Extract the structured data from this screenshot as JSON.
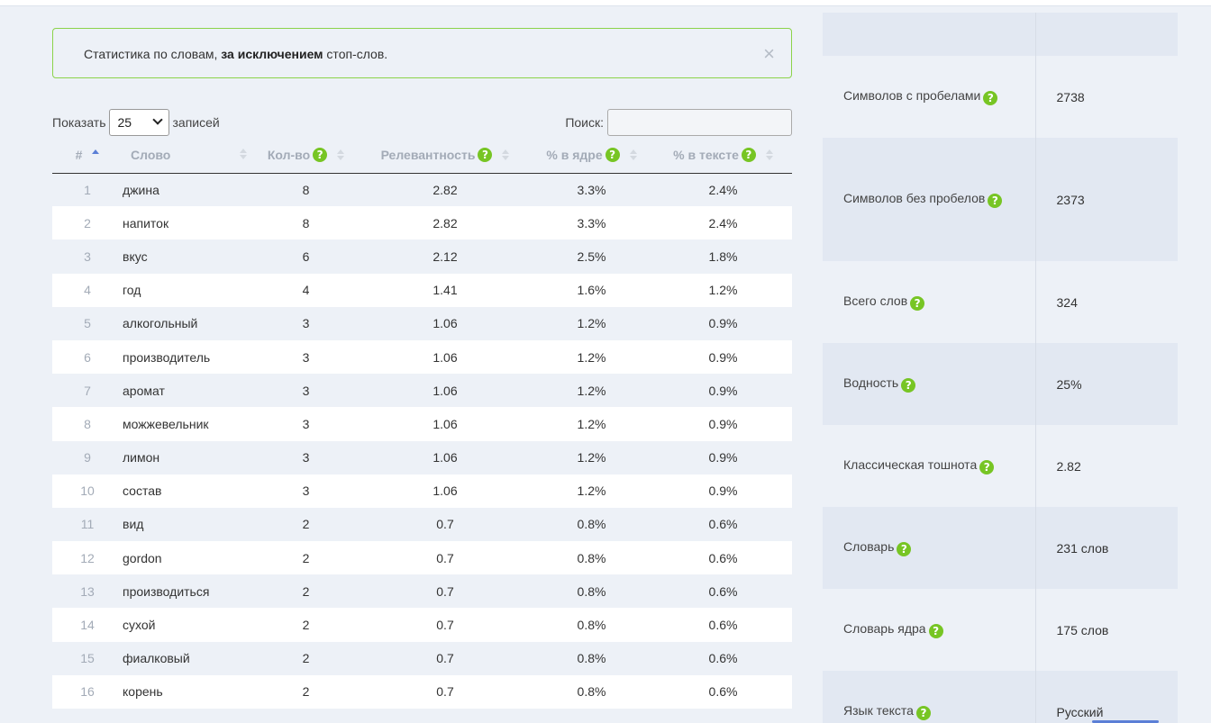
{
  "alert": {
    "text_before": "Статистика по словам, ",
    "text_bold": "за исключением",
    "text_after": " стоп-слов.",
    "close_glyph": "×"
  },
  "controls": {
    "show_label": "Показать",
    "page_size": "25",
    "entries_label": "записей",
    "search_label": "Поиск:",
    "search_value": ""
  },
  "table": {
    "columns": [
      "#",
      "Слово",
      "Кол-во",
      "Релевантность",
      "% в ядре",
      "% в тексте"
    ],
    "help_glyph": "?",
    "rows": [
      [
        "1",
        "джина",
        "8",
        "2.82",
        "3.3%",
        "2.4%"
      ],
      [
        "2",
        "напиток",
        "8",
        "2.82",
        "3.3%",
        "2.4%"
      ],
      [
        "3",
        "вкус",
        "6",
        "2.12",
        "2.5%",
        "1.8%"
      ],
      [
        "4",
        "год",
        "4",
        "1.41",
        "1.6%",
        "1.2%"
      ],
      [
        "5",
        "алкогольный",
        "3",
        "1.06",
        "1.2%",
        "0.9%"
      ],
      [
        "6",
        "производитель",
        "3",
        "1.06",
        "1.2%",
        "0.9%"
      ],
      [
        "7",
        "аромат",
        "3",
        "1.06",
        "1.2%",
        "0.9%"
      ],
      [
        "8",
        "можжевельник",
        "3",
        "1.06",
        "1.2%",
        "0.9%"
      ],
      [
        "9",
        "лимон",
        "3",
        "1.06",
        "1.2%",
        "0.9%"
      ],
      [
        "10",
        "состав",
        "3",
        "1.06",
        "1.2%",
        "0.9%"
      ],
      [
        "11",
        "вид",
        "2",
        "0.7",
        "0.8%",
        "0.6%"
      ],
      [
        "12",
        "gordon",
        "2",
        "0.7",
        "0.8%",
        "0.6%"
      ],
      [
        "13",
        "производиться",
        "2",
        "0.7",
        "0.8%",
        "0.6%"
      ],
      [
        "14",
        "сухой",
        "2",
        "0.7",
        "0.8%",
        "0.6%"
      ],
      [
        "15",
        "фиалковый",
        "2",
        "0.7",
        "0.8%",
        "0.6%"
      ],
      [
        "16",
        "корень",
        "2",
        "0.7",
        "0.8%",
        "0.6%"
      ]
    ]
  },
  "stats": [
    {
      "label": "",
      "value": "",
      "help": false
    },
    {
      "label": "Символов с пробелами",
      "value": "2738",
      "help": true
    },
    {
      "label": "Символов без пробелов",
      "value": "2373",
      "help": true
    },
    {
      "label": "Всего слов",
      "value": "324",
      "help": true
    },
    {
      "label": "Водность",
      "value": "25%",
      "help": true
    },
    {
      "label": "Классическая тошнота",
      "value": "2.82",
      "help": true
    },
    {
      "label": "Словарь",
      "value": "231 слов",
      "help": true
    },
    {
      "label": "Словарь ядра",
      "value": "175 слов",
      "help": true
    },
    {
      "label": "Язык текста",
      "value": "Русский",
      "help": true
    }
  ],
  "colors": {
    "accent_green": "#77c524",
    "sort_active": "#5b7fd6",
    "alert_border": "#8cd34a"
  }
}
